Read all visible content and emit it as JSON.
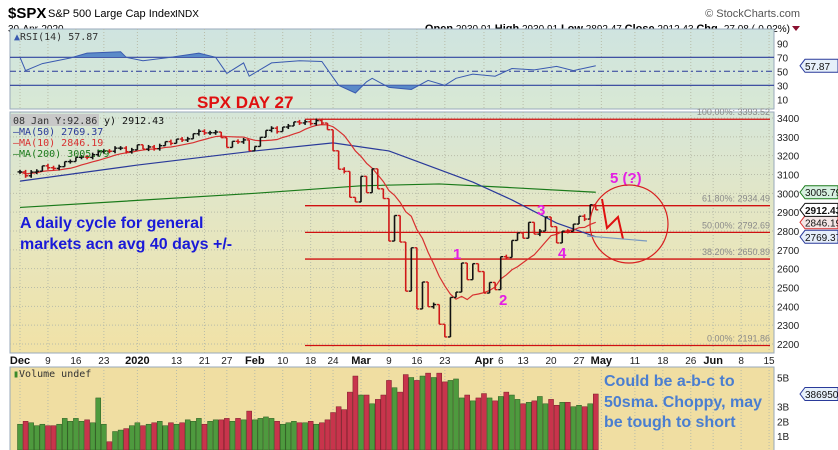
{
  "header": {
    "symbol": "$SPX",
    "name": "S&P 500 Large Cap Index",
    "exchange": "INDX",
    "copyright": "© StockCharts.com",
    "date": "30-Apr-2020",
    "open_label": "Open",
    "open": "2930.91",
    "high_label": "High",
    "high": "2930.91",
    "low_label": "Low",
    "low": "2892.47",
    "close_label": "Close",
    "close": "2912.43",
    "chg_label": "Chg",
    "chg": "-27.08 (-0.92%)",
    "chg_icon": "down-triangle-icon"
  },
  "legend": {
    "rsi": "RSI(14) 57.87",
    "tooltip": "08 Jan Y:92.86",
    "price": "y) 2912.43",
    "ma50": "MA(50) 2769.37",
    "ma10": "MA(10) 2846.19",
    "ma200": "MA(200) 3005.79",
    "volume": "Volume undef"
  },
  "tags": {
    "rsi": "57.87",
    "ma200": "3005.79",
    "close": "2912.43",
    "ma10": "2846.19",
    "ma50": "2769.37",
    "volume": "386950"
  },
  "annotations": {
    "title": "SPX DAY 27",
    "cycle_line1": "A daily cycle for general",
    "cycle_line2": "markets acn avg 40 days +/-",
    "wave1": "1",
    "wave2": "2",
    "wave3": "3",
    "wave4": "4",
    "wave5": "5 (?)",
    "note_line1": "Could be a-b-c to",
    "note_line2": "50sma. Choppy, may",
    "note_line3": "be tough to short"
  },
  "colors": {
    "up_bar": "#111111",
    "down_bar": "#d01818",
    "ma50": "#2a3a9a",
    "ma10": "#d83030",
    "ma200": "#1a7a1a",
    "fib": "#d01010",
    "rsi": "#3a5ab0",
    "vol_up": "#4e9a3e",
    "vol_down": "#c8344c",
    "title": "#e01010",
    "cycle_text": "#1a1ad8",
    "wave": "#e41ee4",
    "note": "#4a7ed0"
  },
  "chart_data": [
    {
      "type": "line",
      "panel": "RSI(14)",
      "ylim": [
        0,
        100
      ],
      "yticks": [
        10,
        30,
        50,
        70,
        90
      ],
      "reference_lines": [
        30,
        50,
        70
      ],
      "points": [
        [
          "2019-12-02",
          70
        ],
        [
          "2019-12-03",
          51
        ],
        [
          "2019-12-06",
          61
        ],
        [
          "2019-12-13",
          69
        ],
        [
          "2019-12-18",
          76
        ],
        [
          "2019-12-27",
          78
        ],
        [
          "2019-12-30",
          70
        ],
        [
          "2020-01-03",
          65
        ],
        [
          "2020-01-10",
          70
        ],
        [
          "2020-01-17",
          76
        ],
        [
          "2020-01-23",
          70
        ],
        [
          "2020-01-27",
          47
        ],
        [
          "2020-01-30",
          62
        ],
        [
          "2020-01-31",
          43
        ],
        [
          "2020-02-06",
          62
        ],
        [
          "2020-02-13",
          65
        ],
        [
          "2020-02-20",
          64
        ],
        [
          "2020-02-25",
          30
        ],
        [
          "2020-02-28",
          19
        ],
        [
          "2020-03-03",
          35
        ],
        [
          "2020-03-04",
          40
        ],
        [
          "2020-03-09",
          27
        ],
        [
          "2020-03-13",
          24
        ],
        [
          "2020-03-18",
          37
        ],
        [
          "2020-03-23",
          30
        ],
        [
          "2020-03-25",
          40
        ],
        [
          "2020-03-30",
          46
        ],
        [
          "2020-04-03",
          43
        ],
        [
          "2020-04-08",
          54
        ],
        [
          "2020-04-15",
          52
        ],
        [
          "2020-04-21",
          57
        ],
        [
          "2020-04-24",
          51
        ],
        [
          "2020-04-30",
          57.87
        ]
      ]
    },
    {
      "type": "ohlc",
      "panel": "price",
      "ylim": [
        2150,
        3480
      ],
      "yticks": [
        2200,
        2300,
        2400,
        2500,
        2600,
        2700,
        2800,
        2900,
        3000,
        3100,
        3200,
        3300,
        3400
      ],
      "xticks": [
        {
          "date": "2019-12-02",
          "label": "Dec",
          "bold": true
        },
        {
          "date": "2019-12-09",
          "label": "9"
        },
        {
          "date": "2019-12-16",
          "label": "16"
        },
        {
          "date": "2019-12-23",
          "label": "23"
        },
        {
          "date": "2020-01-02",
          "label": "2020",
          "bold": true
        },
        {
          "date": "2020-01-13",
          "label": "13"
        },
        {
          "date": "2020-01-21",
          "label": "21"
        },
        {
          "date": "2020-01-27",
          "label": "27"
        },
        {
          "date": "2020-02-03",
          "label": "Feb",
          "bold": true
        },
        {
          "date": "2020-02-10",
          "label": "10"
        },
        {
          "date": "2020-02-18",
          "label": "18"
        },
        {
          "date": "2020-02-24",
          "label": "24"
        },
        {
          "date": "2020-03-02",
          "label": "Mar",
          "bold": true
        },
        {
          "date": "2020-03-09",
          "label": "9"
        },
        {
          "date": "2020-03-16",
          "label": "16"
        },
        {
          "date": "2020-03-23",
          "label": "23"
        },
        {
          "date": "2020-04-01",
          "label": "Apr",
          "bold": true
        },
        {
          "date": "2020-04-06",
          "label": "6"
        },
        {
          "date": "2020-04-13",
          "label": "13"
        },
        {
          "date": "2020-04-20",
          "label": "20"
        },
        {
          "date": "2020-04-27",
          "label": "27"
        },
        {
          "date": "2020-05-01",
          "label": "May",
          "bold": true
        },
        {
          "date": "2020-05-11",
          "label": "11"
        },
        {
          "date": "2020-05-18",
          "label": "18"
        },
        {
          "date": "2020-05-26",
          "label": "26"
        },
        {
          "date": "2020-06-01",
          "label": "Jun",
          "bold": true
        },
        {
          "date": "2020-06-08",
          "label": "8"
        },
        {
          "date": "2020-06-15",
          "label": "15"
        }
      ],
      "dates": [
        "2019-12-02",
        "2019-12-03",
        "2019-12-04",
        "2019-12-05",
        "2019-12-06",
        "2019-12-09",
        "2019-12-10",
        "2019-12-11",
        "2019-12-12",
        "2019-12-13",
        "2019-12-16",
        "2019-12-17",
        "2019-12-18",
        "2019-12-19",
        "2019-12-20",
        "2019-12-23",
        "2019-12-24",
        "2019-12-26",
        "2019-12-27",
        "2019-12-30",
        "2019-12-31",
        "2020-01-02",
        "2020-01-03",
        "2020-01-06",
        "2020-01-07",
        "2020-01-08",
        "2020-01-09",
        "2020-01-10",
        "2020-01-13",
        "2020-01-14",
        "2020-01-15",
        "2020-01-16",
        "2020-01-17",
        "2020-01-21",
        "2020-01-22",
        "2020-01-23",
        "2020-01-24",
        "2020-01-27",
        "2020-01-28",
        "2020-01-29",
        "2020-01-30",
        "2020-01-31",
        "2020-02-03",
        "2020-02-04",
        "2020-02-05",
        "2020-02-06",
        "2020-02-07",
        "2020-02-10",
        "2020-02-11",
        "2020-02-12",
        "2020-02-13",
        "2020-02-14",
        "2020-02-18",
        "2020-02-19",
        "2020-02-20",
        "2020-02-21",
        "2020-02-24",
        "2020-02-25",
        "2020-02-26",
        "2020-02-27",
        "2020-02-28",
        "2020-03-02",
        "2020-03-03",
        "2020-03-04",
        "2020-03-05",
        "2020-03-06",
        "2020-03-09",
        "2020-03-10",
        "2020-03-11",
        "2020-03-12",
        "2020-03-13",
        "2020-03-16",
        "2020-03-17",
        "2020-03-18",
        "2020-03-19",
        "2020-03-20",
        "2020-03-23",
        "2020-03-24",
        "2020-03-25",
        "2020-03-26",
        "2020-03-27",
        "2020-03-30",
        "2020-03-31",
        "2020-04-01",
        "2020-04-02",
        "2020-04-03",
        "2020-04-06",
        "2020-04-07",
        "2020-04-08",
        "2020-04-09",
        "2020-04-13",
        "2020-04-14",
        "2020-04-15",
        "2020-04-16",
        "2020-04-17",
        "2020-04-20",
        "2020-04-21",
        "2020-04-22",
        "2020-04-23",
        "2020-04-24",
        "2020-04-27",
        "2020-04-28",
        "2020-04-29",
        "2020-04-30"
      ],
      "close": [
        3113.87,
        3093.2,
        3112.76,
        3117.43,
        3145.91,
        3135.96,
        3132.52,
        3141.63,
        3168.57,
        3168.8,
        3191.45,
        3192.52,
        3191.14,
        3205.37,
        3221.22,
        3224.01,
        3223.38,
        3239.91,
        3240.02,
        3221.29,
        3230.78,
        3257.85,
        3234.85,
        3246.28,
        3237.18,
        3253.05,
        3274.7,
        3265.35,
        3288.13,
        3283.15,
        3289.29,
        3316.81,
        3329.62,
        3320.79,
        3321.75,
        3325.54,
        3295.47,
        3243.63,
        3276.24,
        3273.4,
        3283.66,
        3225.52,
        3248.92,
        3297.59,
        3334.69,
        3345.78,
        3327.71,
        3352.09,
        3357.75,
        3379.45,
        3373.94,
        3380.16,
        3370.29,
        3386.15,
        3373.23,
        3337.75,
        3225.89,
        3128.21,
        3116.39,
        2978.76,
        2954.22,
        3090.23,
        3003.37,
        3130.12,
        3023.94,
        2972.37,
        2746.56,
        2882.23,
        2741.38,
        2480.64,
        2711.02,
        2386.13,
        2529.19,
        2398.1,
        2409.39,
        2304.92,
        2237.4,
        2447.33,
        2475.56,
        2630.07,
        2541.47,
        2626.65,
        2584.59,
        2470.5,
        2526.9,
        2488.65,
        2663.68,
        2659.41,
        2749.98,
        2789.82,
        2761.63,
        2846.06,
        2783.36,
        2799.55,
        2874.56,
        2823.16,
        2736.56,
        2799.31,
        2797.8,
        2836.74,
        2878.48,
        2863.39,
        2939.51,
        2912.43
      ],
      "ma50": [
        [
          "2019-12-02",
          3065
        ],
        [
          "2020-01-02",
          3150
        ],
        [
          "2020-02-03",
          3225
        ],
        [
          "2020-02-24",
          3268
        ],
        [
          "2020-03-09",
          3225
        ],
        [
          "2020-03-16",
          3170
        ],
        [
          "2020-03-30",
          3060
        ],
        [
          "2020-04-08",
          2965
        ],
        [
          "2020-04-21",
          2842
        ],
        [
          "2020-04-30",
          2769.37
        ]
      ],
      "ma200": [
        [
          "2019-12-02",
          2925
        ],
        [
          "2020-02-03",
          3000
        ],
        [
          "2020-03-02",
          3040
        ],
        [
          "2020-03-20",
          3050
        ],
        [
          "2020-04-08",
          3030
        ],
        [
          "2020-04-30",
          3005.79
        ]
      ],
      "fibonacci": [
        {
          "label": "100.00%: 3393.52",
          "value": 3393.52
        },
        {
          "label": "61.80%: 2934.49",
          "value": 2934.49
        },
        {
          "label": "50.00%: 2792.69",
          "value": 2792.69
        },
        {
          "label": "38.20%: 2650.89",
          "value": 2650.89
        },
        {
          "label": "0.00%: 2191.86",
          "value": 2191.86
        }
      ]
    },
    {
      "type": "bar",
      "panel": "Volume",
      "unit": "B",
      "yticks": [
        "1B",
        "2B",
        "3B",
        "5B"
      ],
      "values": [
        1.8,
        2.0,
        1.9,
        1.7,
        1.8,
        1.7,
        1.7,
        1.8,
        2.2,
        2.0,
        2.2,
        2.0,
        2.1,
        1.9,
        3.6,
        1.8,
        0.6,
        1.3,
        1.4,
        1.5,
        1.7,
        1.9,
        1.7,
        1.8,
        1.9,
        2.0,
        1.7,
        1.9,
        1.8,
        1.9,
        2.1,
        2.0,
        2.2,
        1.8,
        2.0,
        2.1,
        2.1,
        2.2,
        2.0,
        2.2,
        2.1,
        2.7,
        2.1,
        2.2,
        2.3,
        2.2,
        2.0,
        1.8,
        1.9,
        2.0,
        1.9,
        1.9,
        2.0,
        1.8,
        1.9,
        2.1,
        2.6,
        3.0,
        2.8,
        4.0,
        5.1,
        3.8,
        3.8,
        3.2,
        3.5,
        3.8,
        4.8,
        4.3,
        4.0,
        5.2,
        5.0,
        4.8,
        5.1,
        5.3,
        5.0,
        5.3,
        4.7,
        4.8,
        4.9,
        3.6,
        3.8,
        3.4,
        3.6,
        3.9,
        3.6,
        3.4,
        3.7,
        4.0,
        3.8,
        3.5,
        3.2,
        3.3,
        3.4,
        3.7,
        3.2,
        3.5,
        3.1,
        3.3,
        3.3,
        3.0,
        3.1,
        3.0,
        3.2,
        3.87
      ]
    }
  ]
}
